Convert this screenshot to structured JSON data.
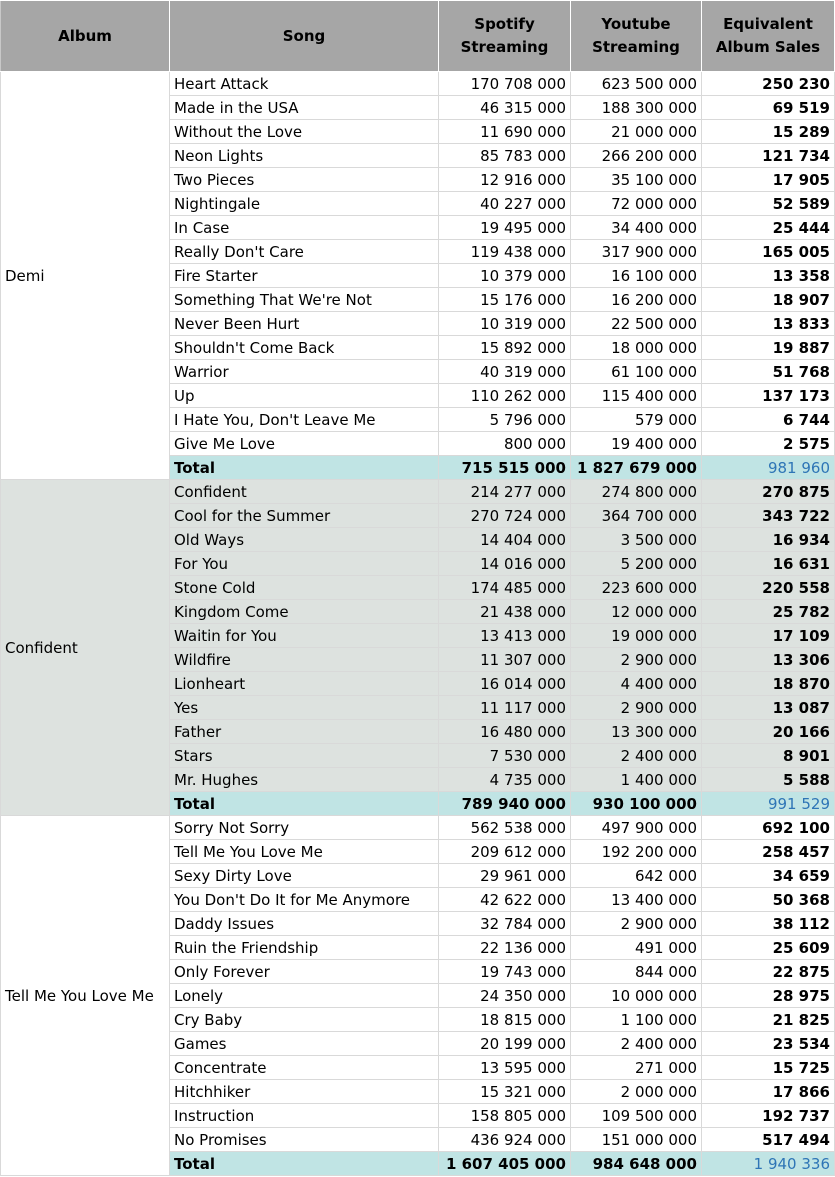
{
  "headers": {
    "album": "Album",
    "song": "Song",
    "spotify": [
      "Spotify",
      "Streaming"
    ],
    "youtube": [
      "Youtube",
      "Streaming"
    ],
    "equivalent": [
      "Equivalent",
      "Album Sales"
    ]
  },
  "albums": [
    {
      "name": "Demi",
      "shade": false,
      "songs": [
        {
          "song": "Heart Attack",
          "spotify": "170 708 000",
          "youtube": "623 500 000",
          "eas": "250 230"
        },
        {
          "song": "Made in the USA",
          "spotify": "46 315 000",
          "youtube": "188 300 000",
          "eas": "69 519"
        },
        {
          "song": "Without the Love",
          "spotify": "11 690 000",
          "youtube": "21 000 000",
          "eas": "15 289"
        },
        {
          "song": "Neon Lights",
          "spotify": "85 783 000",
          "youtube": "266 200 000",
          "eas": "121 734"
        },
        {
          "song": "Two Pieces",
          "spotify": "12 916 000",
          "youtube": "35 100 000",
          "eas": "17 905"
        },
        {
          "song": "Nightingale",
          "spotify": "40 227 000",
          "youtube": "72 000 000",
          "eas": "52 589"
        },
        {
          "song": "In Case",
          "spotify": "19 495 000",
          "youtube": "34 400 000",
          "eas": "25 444"
        },
        {
          "song": "Really Don't Care",
          "spotify": "119 438 000",
          "youtube": "317 900 000",
          "eas": "165 005"
        },
        {
          "song": "Fire Starter",
          "spotify": "10 379 000",
          "youtube": "16 100 000",
          "eas": "13 358"
        },
        {
          "song": "Something That We're Not",
          "spotify": "15 176 000",
          "youtube": "16 200 000",
          "eas": "18 907"
        },
        {
          "song": "Never Been Hurt",
          "spotify": "10 319 000",
          "youtube": "22 500 000",
          "eas": "13 833"
        },
        {
          "song": "Shouldn't Come Back",
          "spotify": "15 892 000",
          "youtube": "18 000 000",
          "eas": "19 887"
        },
        {
          "song": "Warrior",
          "spotify": "40 319 000",
          "youtube": "61 100 000",
          "eas": "51 768"
        },
        {
          "song": "Up",
          "spotify": "110 262 000",
          "youtube": "115 400 000",
          "eas": "137 173"
        },
        {
          "song": "I Hate You, Don't Leave Me",
          "spotify": "5 796 000",
          "youtube": "579 000",
          "eas": "6 744"
        },
        {
          "song": "Give Me Love",
          "spotify": "800 000",
          "youtube": "19 400 000",
          "eas": "2 575"
        }
      ],
      "total": {
        "label": "Total",
        "spotify": "715 515 000",
        "youtube": "1 827 679 000",
        "eas": "981 960"
      }
    },
    {
      "name": "Confident",
      "shade": true,
      "songs": [
        {
          "song": "Confident",
          "spotify": "214 277 000",
          "youtube": "274 800 000",
          "eas": "270 875"
        },
        {
          "song": "Cool for the Summer",
          "spotify": "270 724 000",
          "youtube": "364 700 000",
          "eas": "343 722"
        },
        {
          "song": "Old Ways",
          "spotify": "14 404 000",
          "youtube": "3 500 000",
          "eas": "16 934"
        },
        {
          "song": "For You",
          "spotify": "14 016 000",
          "youtube": "5 200 000",
          "eas": "16 631"
        },
        {
          "song": "Stone Cold",
          "spotify": "174 485 000",
          "youtube": "223 600 000",
          "eas": "220 558"
        },
        {
          "song": "Kingdom Come",
          "spotify": "21 438 000",
          "youtube": "12 000 000",
          "eas": "25 782"
        },
        {
          "song": "Waitin for You",
          "spotify": "13 413 000",
          "youtube": "19 000 000",
          "eas": "17 109"
        },
        {
          "song": "Wildfire",
          "spotify": "11 307 000",
          "youtube": "2 900 000",
          "eas": "13 306"
        },
        {
          "song": "Lionheart",
          "spotify": "16 014 000",
          "youtube": "4 400 000",
          "eas": "18 870"
        },
        {
          "song": "Yes",
          "spotify": "11 117 000",
          "youtube": "2 900 000",
          "eas": "13 087"
        },
        {
          "song": "Father",
          "spotify": "16 480 000",
          "youtube": "13 300 000",
          "eas": "20 166"
        },
        {
          "song": "Stars",
          "spotify": "7 530 000",
          "youtube": "2 400 000",
          "eas": "8 901"
        },
        {
          "song": "Mr. Hughes",
          "spotify": "4 735 000",
          "youtube": "1 400 000",
          "eas": "5 588"
        }
      ],
      "total": {
        "label": "Total",
        "spotify": "789 940 000",
        "youtube": "930 100 000",
        "eas": "991 529"
      }
    },
    {
      "name": "Tell Me You Love Me",
      "shade": false,
      "songs": [
        {
          "song": "Sorry Not Sorry",
          "spotify": "562 538 000",
          "youtube": "497 900 000",
          "eas": "692 100"
        },
        {
          "song": "Tell Me You Love Me",
          "spotify": "209 612 000",
          "youtube": "192 200 000",
          "eas": "258 457"
        },
        {
          "song": "Sexy Dirty Love",
          "spotify": "29 961 000",
          "youtube": "642 000",
          "eas": "34 659"
        },
        {
          "song": "You Don't Do It for Me Anymore",
          "spotify": "42 622 000",
          "youtube": "13 400 000",
          "eas": "50 368"
        },
        {
          "song": "Daddy Issues",
          "spotify": "32 784 000",
          "youtube": "2 900 000",
          "eas": "38 112"
        },
        {
          "song": "Ruin the Friendship",
          "spotify": "22 136 000",
          "youtube": "491 000",
          "eas": "25 609"
        },
        {
          "song": "Only Forever",
          "spotify": "19 743 000",
          "youtube": "844 000",
          "eas": "22 875"
        },
        {
          "song": "Lonely",
          "spotify": "24 350 000",
          "youtube": "10 000 000",
          "eas": "28 975"
        },
        {
          "song": "Cry Baby",
          "spotify": "18 815 000",
          "youtube": "1 100 000",
          "eas": "21 825"
        },
        {
          "song": "Games",
          "spotify": "20 199 000",
          "youtube": "2 400 000",
          "eas": "23 534"
        },
        {
          "song": "Concentrate",
          "spotify": "13 595 000",
          "youtube": "271 000",
          "eas": "15 725"
        },
        {
          "song": "Hitchhiker",
          "spotify": "15 321 000",
          "youtube": "2 000 000",
          "eas": "17 866"
        },
        {
          "song": "Instruction",
          "spotify": "158 805 000",
          "youtube": "109 500 000",
          "eas": "192 737"
        },
        {
          "song": "No Promises",
          "spotify": "436 924 000",
          "youtube": "151 000 000",
          "eas": "517 494"
        }
      ],
      "total": {
        "label": "Total",
        "spotify": "1 607 405 000",
        "youtube": "984 648 000",
        "eas": "1 940 336"
      }
    }
  ]
}
